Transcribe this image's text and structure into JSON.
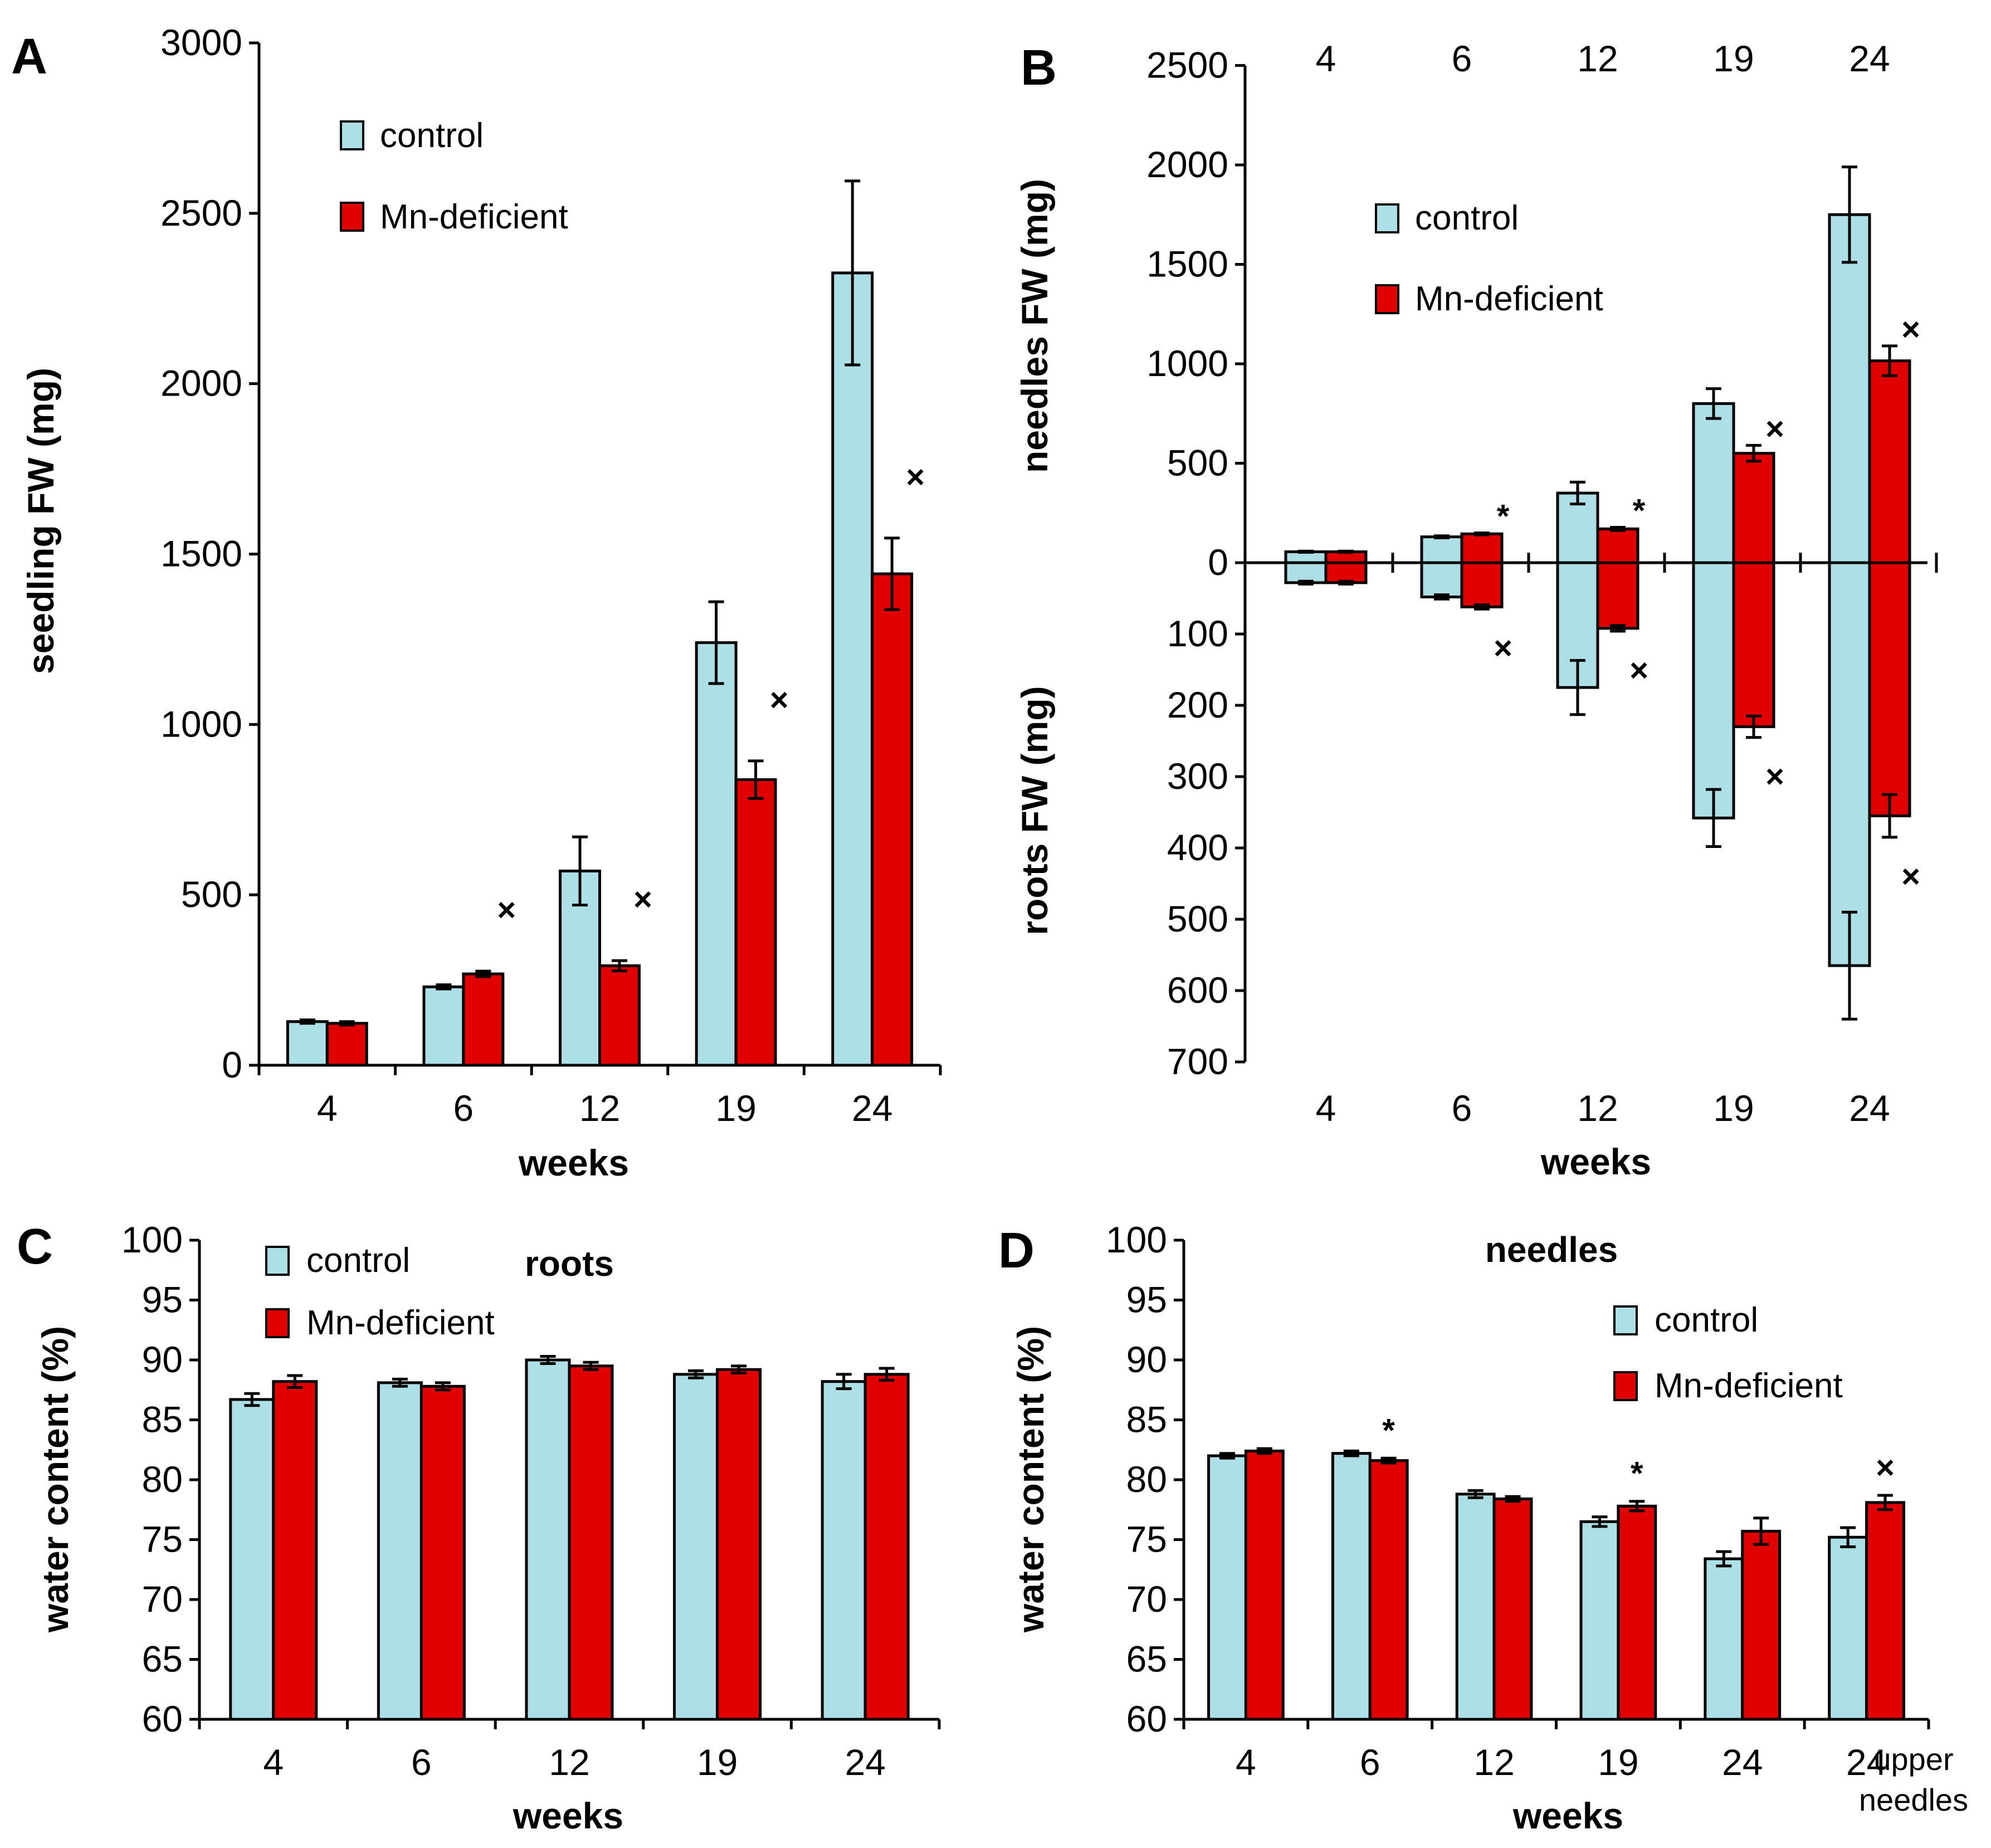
{
  "colors": {
    "control": "#ADE0E6",
    "mn": "#E00000",
    "stroke": "#000000"
  },
  "chart_data": [
    {
      "panel": "A",
      "type": "bar",
      "categories": [
        "4",
        "6",
        "12",
        "19",
        "24"
      ],
      "xlabel": "weeks",
      "ylabel": "seedling FW (mg)",
      "ylim": [
        0,
        3000
      ],
      "yticks": [
        0,
        500,
        1000,
        1500,
        2000,
        2500,
        3000
      ],
      "legend": [
        "control",
        "Mn-deficient"
      ],
      "series": [
        {
          "name": "control",
          "values": [
            128,
            230,
            570,
            1240,
            2325
          ],
          "errors": [
            5,
            6,
            100,
            120,
            270
          ]
        },
        {
          "name": "Mn-deficient",
          "values": [
            123,
            268,
            292,
            838,
            1442
          ],
          "errors": [
            5,
            8,
            15,
            55,
            105
          ]
        }
      ],
      "annotations": [
        {
          "category": "6",
          "series": "Mn-deficient",
          "mark": "×"
        },
        {
          "category": "12",
          "series": "Mn-deficient",
          "mark": "×"
        },
        {
          "category": "19",
          "series": "Mn-deficient",
          "mark": "×"
        },
        {
          "category": "24",
          "series": "Mn-deficient",
          "mark": "×"
        }
      ]
    },
    {
      "panel": "B",
      "type": "bar",
      "categories": [
        "4",
        "6",
        "12",
        "19",
        "24"
      ],
      "xlabel": "weeks",
      "ylabel_upper": "needles FW (mg)",
      "ylabel_lower": "roots FW (mg)",
      "ylim_upper": [
        0,
        2500
      ],
      "ylim_lower": [
        0,
        700
      ],
      "yticks_upper": [
        0,
        500,
        1000,
        1500,
        2000,
        2500
      ],
      "yticks_lower": [
        100,
        200,
        300,
        400,
        500,
        600,
        700
      ],
      "legend": [
        "control",
        "Mn-deficient"
      ],
      "needles": [
        {
          "name": "control",
          "values": [
            55,
            130,
            350,
            800,
            1750
          ],
          "errors": [
            3,
            5,
            55,
            75,
            240
          ]
        },
        {
          "name": "Mn-deficient",
          "values": [
            55,
            145,
            170,
            550,
            1015
          ],
          "errors": [
            3,
            5,
            8,
            40,
            75
          ]
        }
      ],
      "roots": [
        {
          "name": "control",
          "values": [
            28,
            48,
            175,
            358,
            565
          ],
          "errors": [
            2,
            3,
            38,
            40,
            75
          ]
        },
        {
          "name": "Mn-deficient",
          "values": [
            28,
            62,
            92,
            230,
            355
          ],
          "errors": [
            2,
            3,
            4,
            15,
            30
          ]
        }
      ],
      "annotations_needles": [
        {
          "category": "6",
          "series": "Mn-deficient",
          "mark": "*"
        },
        {
          "category": "12",
          "series": "Mn-deficient",
          "mark": "*"
        },
        {
          "category": "19",
          "series": "Mn-deficient",
          "mark": "×"
        },
        {
          "category": "24",
          "series": "Mn-deficient",
          "mark": "×"
        }
      ],
      "annotations_roots": [
        {
          "category": "6",
          "series": "Mn-deficient",
          "mark": "×"
        },
        {
          "category": "12",
          "series": "Mn-deficient",
          "mark": "×"
        },
        {
          "category": "19",
          "series": "Mn-deficient",
          "mark": "×"
        },
        {
          "category": "24",
          "series": "Mn-deficient",
          "mark": "×"
        }
      ]
    },
    {
      "panel": "C",
      "type": "bar",
      "title": "roots",
      "categories": [
        "4",
        "6",
        "12",
        "19",
        "24"
      ],
      "xlabel": "weeks",
      "ylabel": "water content (%)",
      "ylim": [
        60,
        100
      ],
      "yticks": [
        60,
        65,
        70,
        75,
        80,
        85,
        90,
        95,
        100
      ],
      "legend": [
        "control",
        "Mn-deficient"
      ],
      "series": [
        {
          "name": "control",
          "values": [
            86.7,
            88.1,
            90.0,
            88.8,
            88.2
          ],
          "errors": [
            0.5,
            0.3,
            0.3,
            0.3,
            0.6
          ]
        },
        {
          "name": "Mn-deficient",
          "values": [
            88.2,
            87.8,
            89.5,
            89.2,
            88.8
          ],
          "errors": [
            0.5,
            0.3,
            0.3,
            0.3,
            0.5
          ]
        }
      ],
      "annotations": []
    },
    {
      "panel": "D",
      "type": "bar",
      "title": "needles",
      "categories": [
        "4",
        "6",
        "12",
        "19",
        "24",
        "24"
      ],
      "extra_label": "upper needles",
      "xlabel": "weeks",
      "ylabel": "water content (%)",
      "ylim": [
        60,
        100
      ],
      "yticks": [
        60,
        65,
        70,
        75,
        80,
        85,
        90,
        95,
        100
      ],
      "legend": [
        "control",
        "Mn-deficient"
      ],
      "series": [
        {
          "name": "control",
          "values": [
            82.0,
            82.2,
            78.8,
            76.5,
            73.4,
            75.2
          ],
          "errors": [
            0.2,
            0.2,
            0.3,
            0.4,
            0.6,
            0.8
          ]
        },
        {
          "name": "Mn-deficient",
          "values": [
            82.4,
            81.6,
            78.4,
            77.8,
            75.7,
            78.1
          ],
          "errors": [
            0.2,
            0.2,
            0.2,
            0.4,
            1.1,
            0.6
          ]
        }
      ],
      "annotations": [
        {
          "category_index": 1,
          "series": "Mn-deficient",
          "mark": "*"
        },
        {
          "category_index": 3,
          "series": "Mn-deficient",
          "mark": "*"
        },
        {
          "category_index": 5,
          "series": "Mn-deficient",
          "mark": "×"
        }
      ]
    }
  ]
}
